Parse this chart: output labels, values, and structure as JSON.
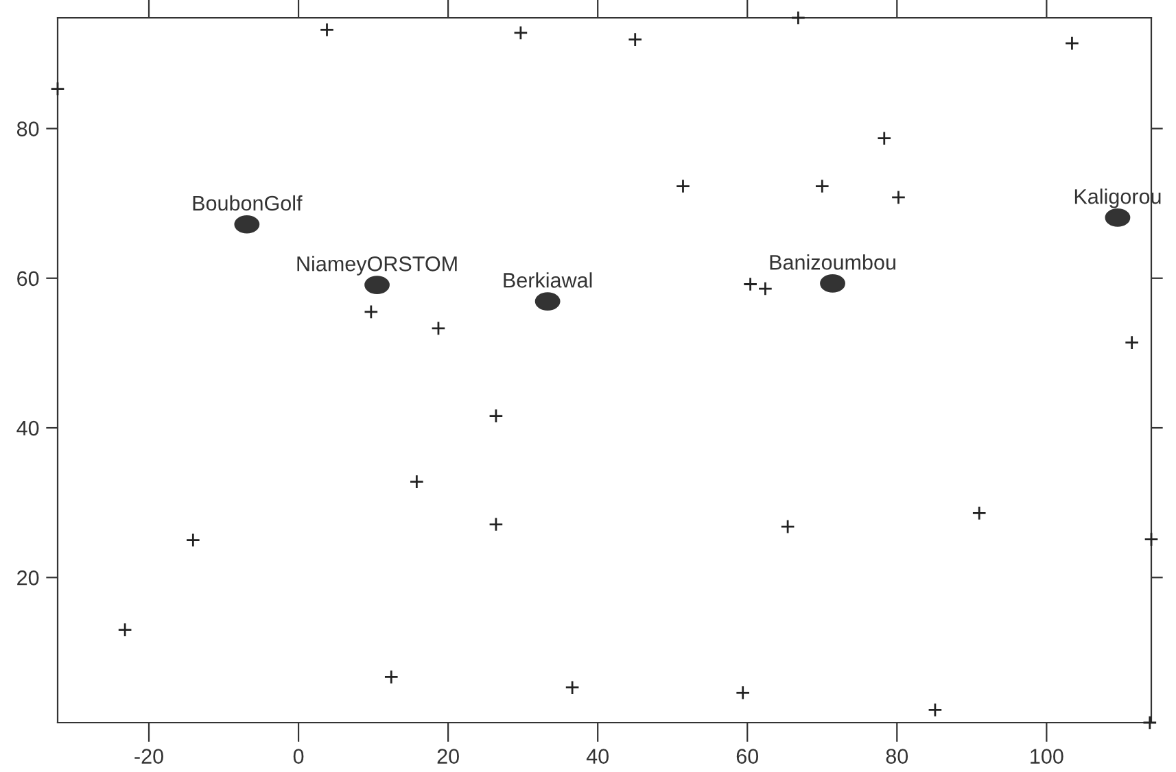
{
  "chart_data": {
    "type": "scatter",
    "xlim": [
      -32.2,
      114
    ],
    "ylim": [
      0.6,
      94.8
    ],
    "xticks": [
      -20,
      0,
      20,
      40,
      60,
      80,
      100
    ],
    "yticks": [
      20,
      40,
      60,
      80
    ],
    "series": [
      {
        "marker": "cross",
        "color": "#222222",
        "x": [
          3.8,
          29.7,
          45.0,
          66.8,
          103.4,
          -32.2,
          78.3,
          51.4,
          70.0,
          80.2,
          60.4,
          62.4,
          111.4,
          9.7,
          18.7,
          26.4,
          15.8,
          26.4,
          -14.1,
          -23.2,
          12.4,
          36.6,
          65.4,
          91.0,
          59.4,
          85.1,
          113.8,
          114
        ],
        "values": [
          93.2,
          92.8,
          91.9,
          94.8,
          91.4,
          85.3,
          78.7,
          72.3,
          72.3,
          70.8,
          59.2,
          58.6,
          51.4,
          55.5,
          53.3,
          41.6,
          32.8,
          27.1,
          25.0,
          13.0,
          6.7,
          5.3,
          26.8,
          28.6,
          4.6,
          2.3,
          0.6,
          25.1
        ]
      },
      {
        "marker": "circle",
        "color": "#333333",
        "x": [
          -6.9,
          10.5,
          33.3,
          71.4,
          109.5
        ],
        "values": [
          67.2,
          59.1,
          56.9,
          59.3,
          68.1
        ]
      }
    ],
    "annotations": [
      {
        "text": "BoubonGolf",
        "x": -6.9,
        "y": 67.2
      },
      {
        "text": "NiameyORSTOM",
        "x": 10.5,
        "y": 59.1
      },
      {
        "text": "Berkiawal",
        "x": 33.3,
        "y": 56.9
      },
      {
        "text": "Banizoumbou",
        "x": 71.4,
        "y": 59.3
      },
      {
        "text": "Kaligorou",
        "x": 109.5,
        "y": 68.1
      }
    ]
  }
}
